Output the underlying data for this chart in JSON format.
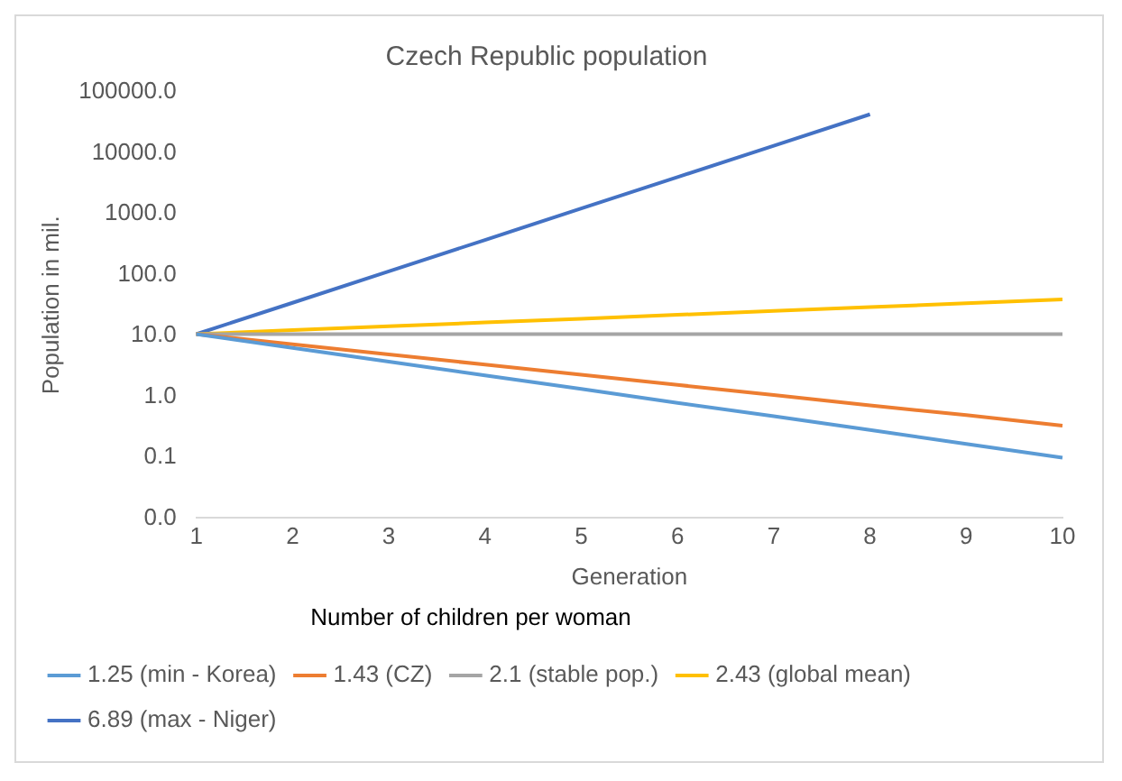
{
  "chart_data": {
    "type": "line",
    "title": "Czech Republic population",
    "xlabel": "Generation",
    "ylabel": "Population in mil.",
    "legend_title": "Number of children per woman",
    "categories": [
      "1",
      "2",
      "3",
      "4",
      "5",
      "6",
      "7",
      "8",
      "9",
      "10"
    ],
    "series": [
      {
        "name": "1.25 (min - Korea)",
        "color": "#5b9bd5",
        "values": [
          10.5,
          6.25,
          3.72,
          2.21,
          1.32,
          0.78,
          0.47,
          0.28,
          0.165,
          0.098
        ]
      },
      {
        "name": "1.43 (CZ)",
        "color": "#ed7d31",
        "values": [
          10.5,
          7.15,
          4.87,
          3.32,
          2.26,
          1.54,
          1.05,
          0.71,
          0.49,
          0.33
        ]
      },
      {
        "name": "2.1 (stable pop.)",
        "color": "#a5a5a5",
        "values": [
          10.5,
          10.5,
          10.5,
          10.5,
          10.5,
          10.5,
          10.5,
          10.5,
          10.5,
          10.5
        ]
      },
      {
        "name": "2.43 (global mean)",
        "color": "#ffc000",
        "values": [
          10.5,
          12.2,
          14.1,
          16.3,
          18.8,
          21.8,
          25.2,
          29.2,
          33.8,
          39.1
        ]
      },
      {
        "name": "6.89 (max - Niger)",
        "color": "#4472c4",
        "values": [
          10.5,
          34.4,
          113,
          371,
          1217,
          3993,
          13100,
          43000,
          null,
          null
        ]
      }
    ],
    "log": "y",
    "ylim": [
      0.01,
      100000
    ],
    "yticks": [
      {
        "value": 0.01,
        "label": "0.0"
      },
      {
        "value": 0.1,
        "label": "0.1"
      },
      {
        "value": 1,
        "label": "1.0"
      },
      {
        "value": 10,
        "label": "10.0"
      },
      {
        "value": 100,
        "label": "100.0"
      },
      {
        "value": 1000,
        "label": "1000.0"
      },
      {
        "value": 10000,
        "label": "10000.0"
      },
      {
        "value": 100000,
        "label": "100000.0"
      }
    ],
    "grid": false,
    "legend": "bottom",
    "marker": "none",
    "line_style": "solid"
  }
}
